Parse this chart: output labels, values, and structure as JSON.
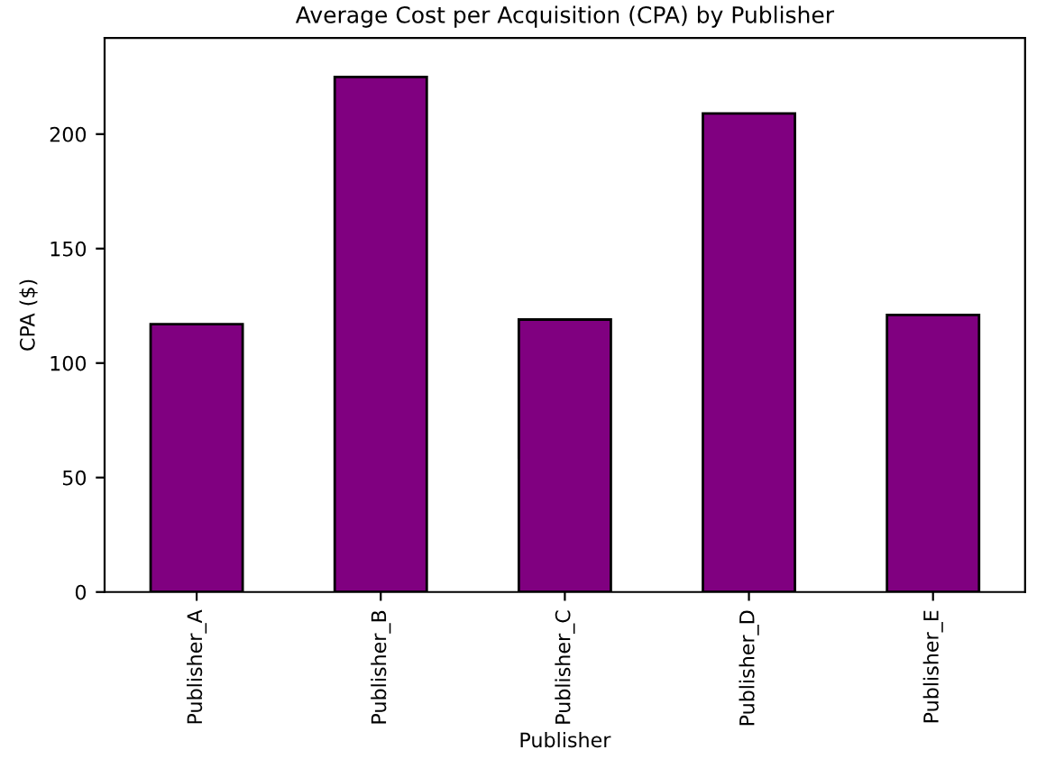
{
  "chart_data": {
    "type": "bar",
    "title": "Average Cost per Acquisition (CPA) by Publisher",
    "xlabel": "Publisher",
    "ylabel": "CPA ($)",
    "categories": [
      "Publisher_A",
      "Publisher_B",
      "Publisher_C",
      "Publisher_D",
      "Publisher_E"
    ],
    "values": [
      117,
      225,
      119,
      209,
      121
    ],
    "color": "#800080",
    "ylim": [
      0,
      242
    ],
    "yticks": [
      0,
      50,
      100,
      150,
      200
    ],
    "grid": false
  }
}
